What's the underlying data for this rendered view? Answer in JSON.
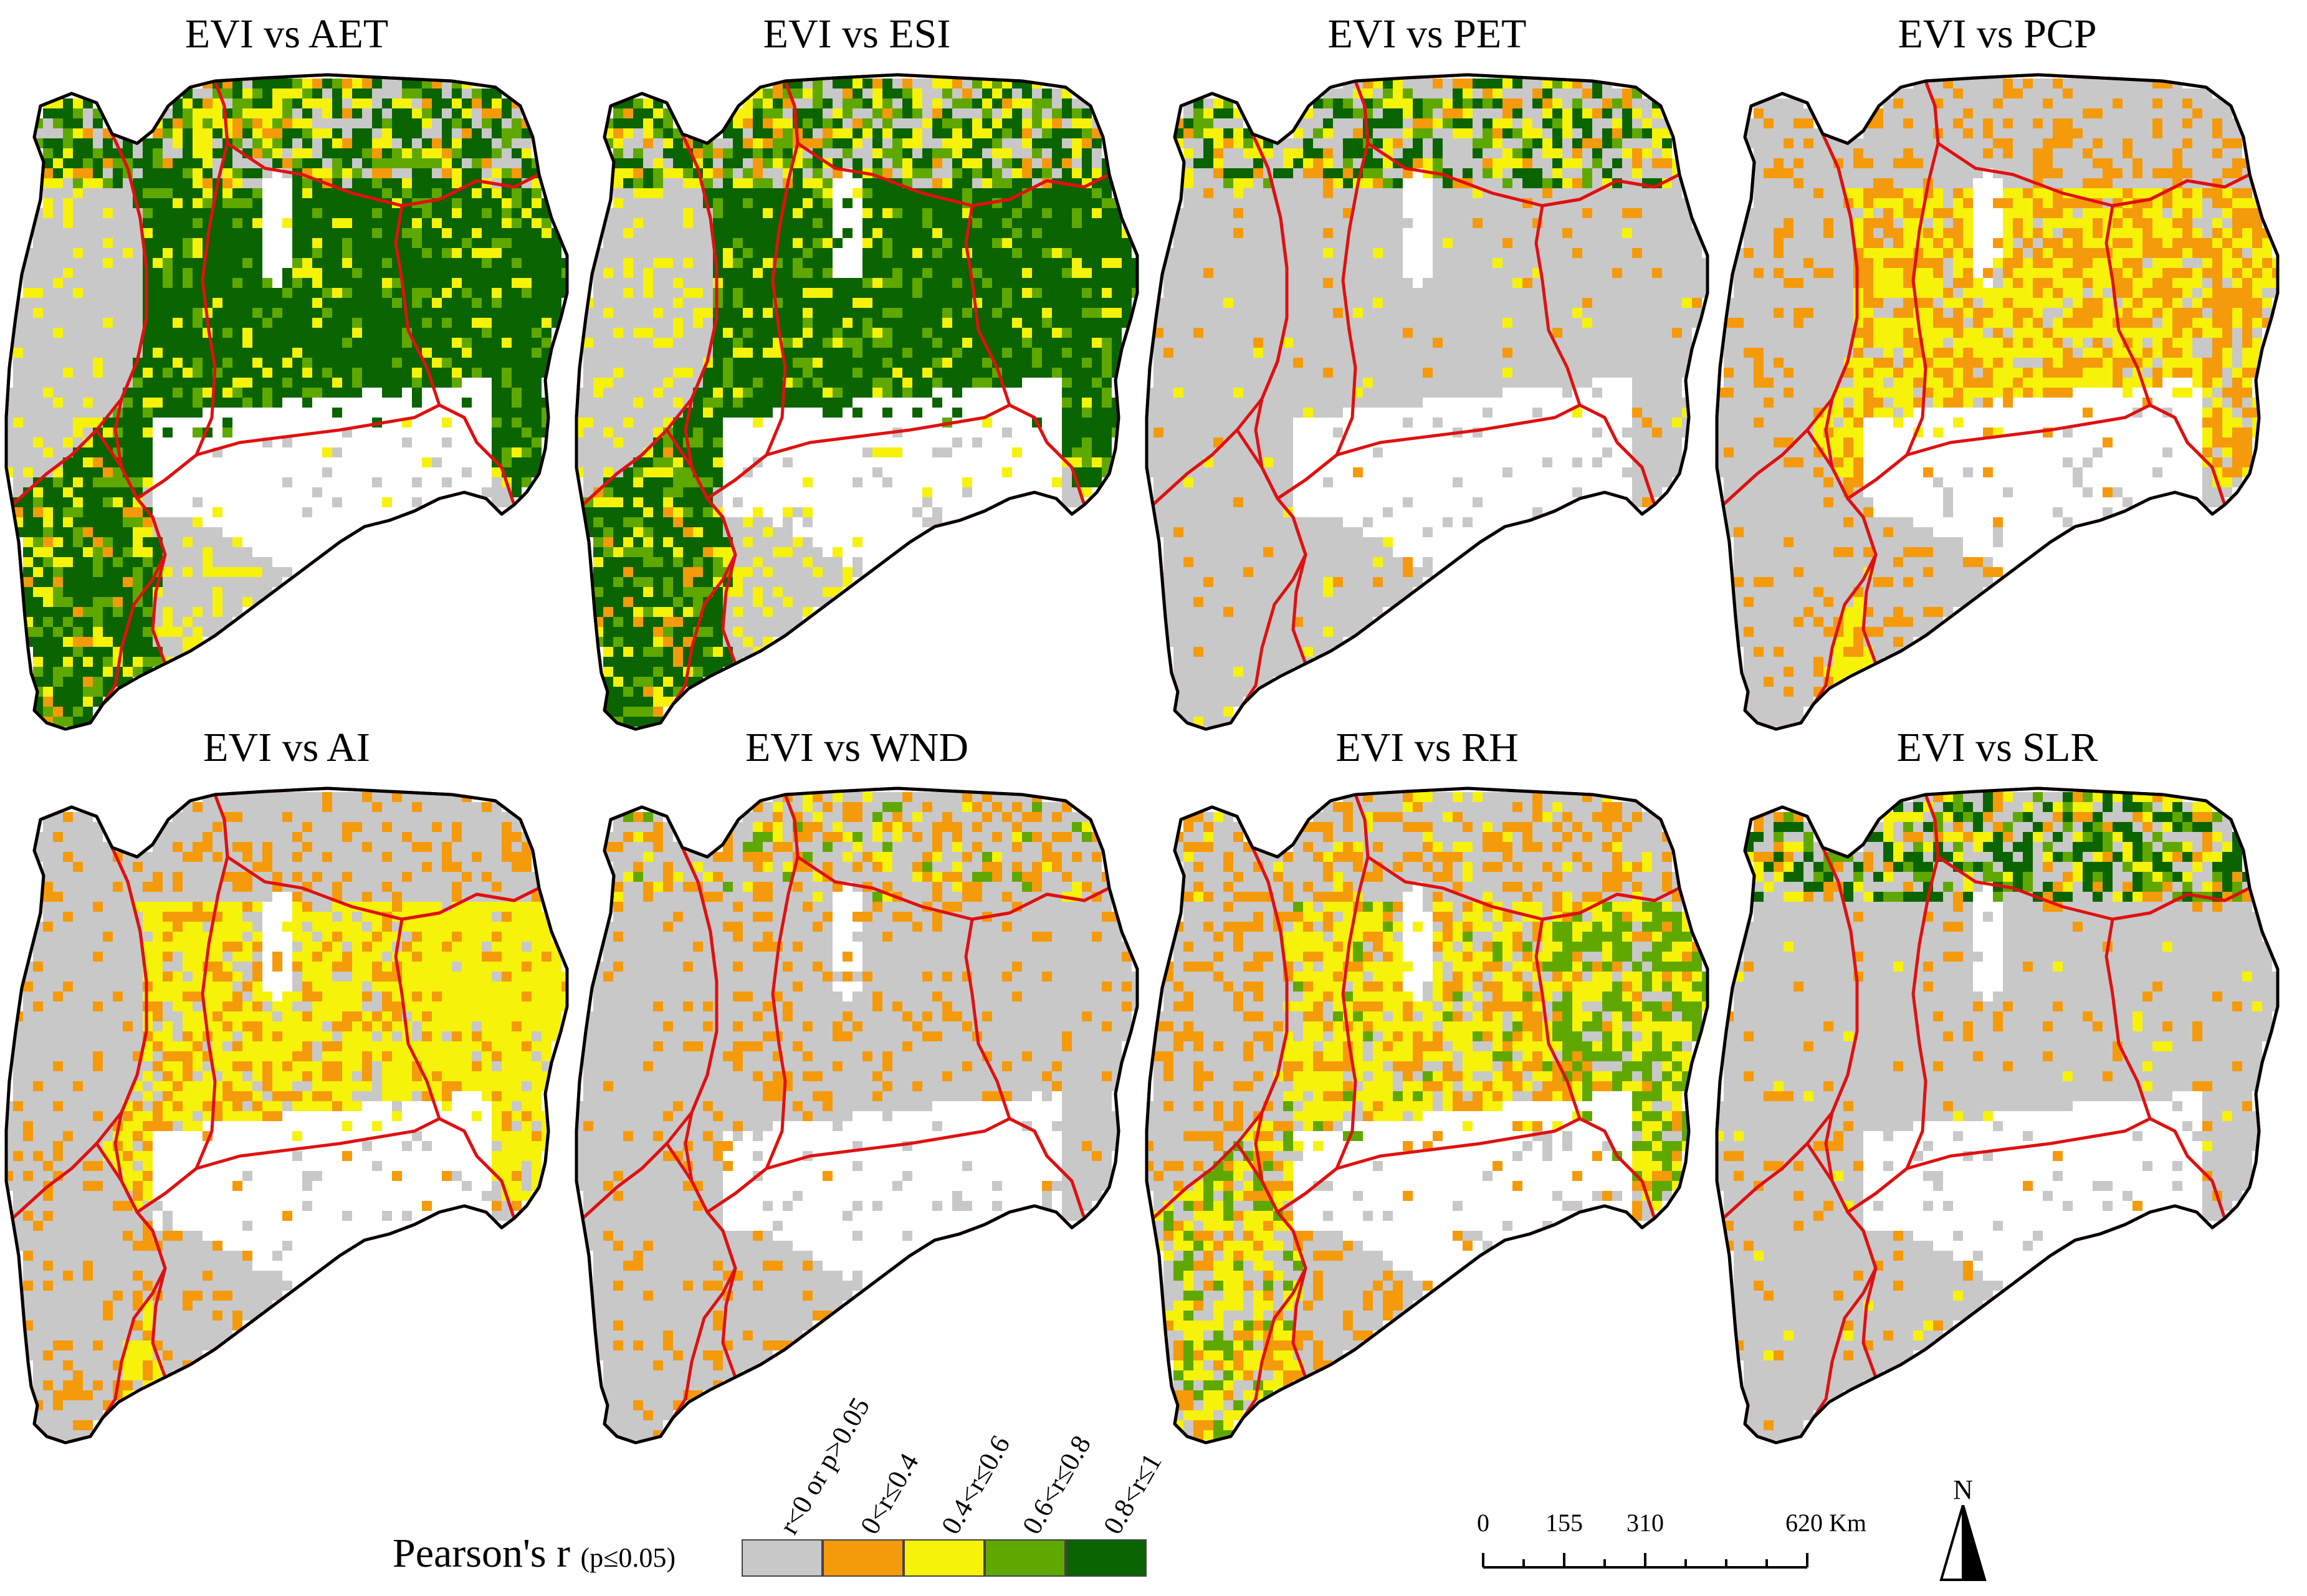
{
  "panels": [
    {
      "title": "EVI vs AET",
      "pattern": "aet"
    },
    {
      "title": "EVI vs ESI",
      "pattern": "esi"
    },
    {
      "title": "EVI vs PET",
      "pattern": "pet"
    },
    {
      "title": "EVI vs PCP",
      "pattern": "pcp"
    },
    {
      "title": "EVI vs AI",
      "pattern": "ai"
    },
    {
      "title": "EVI vs WND",
      "pattern": "wnd"
    },
    {
      "title": "EVI vs RH",
      "pattern": "rh"
    },
    {
      "title": "EVI vs SLR",
      "pattern": "slr"
    }
  ],
  "legend": {
    "title": "Pearson's r",
    "subtitle": "(p≤0.05)",
    "classes": [
      {
        "label": "r<0 or p>0.05",
        "color": "#c8c8c8"
      },
      {
        "label": "0<r≤0.4",
        "color": "#f59a0a"
      },
      {
        "label": "0.4<r≤0.6",
        "color": "#f7f20a"
      },
      {
        "label": "0.6<r≤0.8",
        "color": "#5fa800"
      },
      {
        "label": "0.8<r≤1",
        "color": "#0a6400"
      }
    ]
  },
  "scalebar": {
    "ticks": [
      "0",
      "155",
      "310",
      "620 Km"
    ],
    "tick_values": [
      0,
      155,
      310,
      620
    ]
  },
  "north_arrow": {
    "label": "N"
  },
  "colors": {
    "boundary_outer": "#000000",
    "boundary_regions": "#e01010",
    "background_white": "#ffffff"
  }
}
